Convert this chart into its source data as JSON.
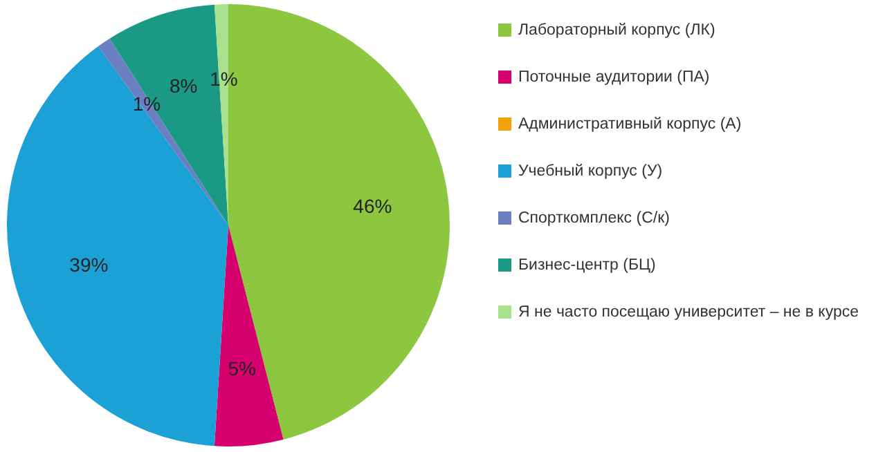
{
  "chart_data": {
    "type": "pie",
    "categories": [
      "Лабораторный корпус (ЛК)",
      "Поточные аудитории (ПА)",
      "Административный корпус (А)",
      "Учебный корпус (У)",
      "Спорткомплекс (С/к)",
      "Бизнес-центр (БЦ)",
      "Я не часто посещаю  университет – не в курсе"
    ],
    "values": [
      46,
      5,
      0,
      39,
      1,
      8,
      1
    ],
    "value_labels": [
      "46%",
      "5%",
      null,
      "39%",
      "1%",
      "8%",
      "1%"
    ],
    "colors": [
      "#8dc63f",
      "#d6006f",
      "#f0a30a",
      "#1ba1d6",
      "#6c7fc2",
      "#1a9a84",
      "#a9e08e"
    ],
    "legend": "right"
  }
}
